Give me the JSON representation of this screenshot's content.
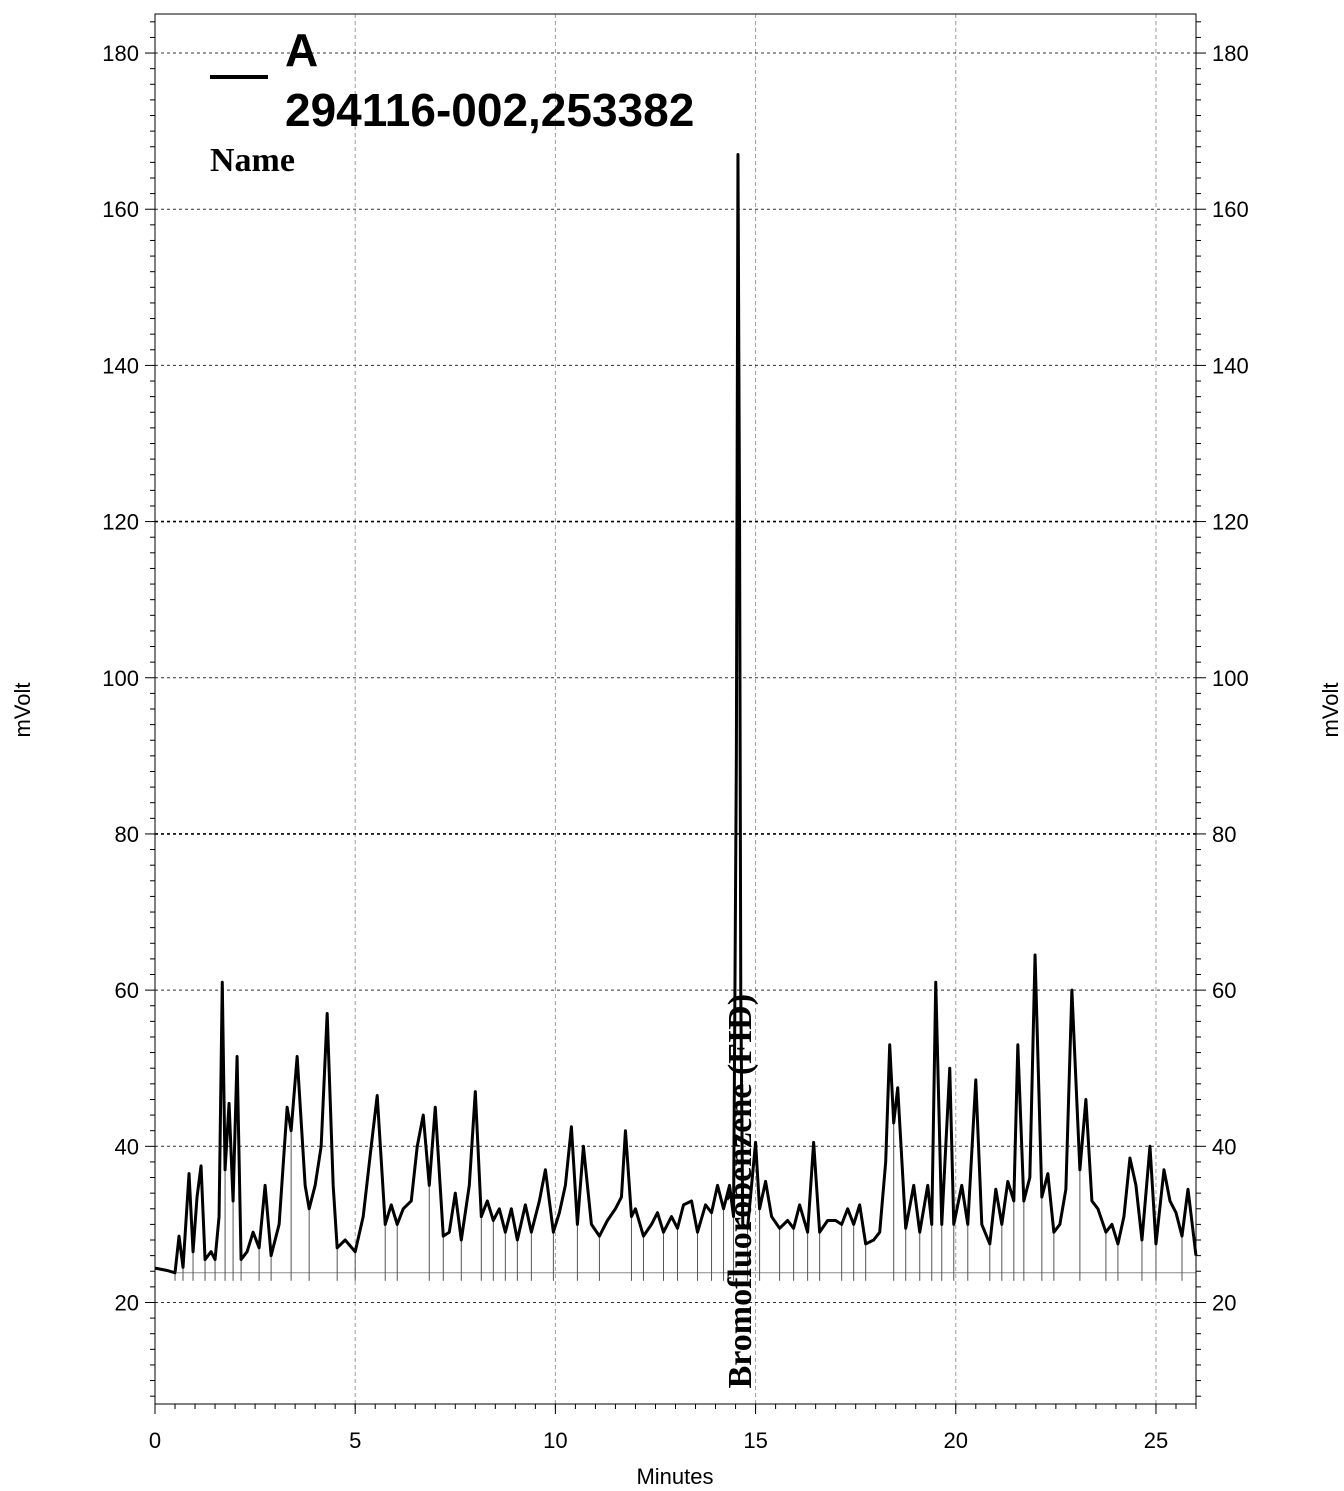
{
  "chart_data": {
    "type": "line",
    "xlabel": "Minutes",
    "ylabel_left": "mVolt",
    "ylabel_right": "mVolt",
    "xlim": [
      0,
      26
    ],
    "ylim": [
      7,
      185
    ],
    "x_ticks": [
      0,
      5,
      10,
      15,
      20,
      25
    ],
    "x_tick_labels": [
      "0",
      "5",
      "10",
      "15",
      "20",
      "25"
    ],
    "y_ticks": [
      20,
      40,
      60,
      80,
      100,
      120,
      140,
      160,
      180
    ],
    "y_tick_labels": [
      "20",
      "40",
      "60",
      "80",
      "100",
      "120",
      "140",
      "160",
      "180"
    ],
    "grid": true,
    "legend": {
      "placement": "top-left",
      "series_label": "A",
      "sample_id": "294116-002,253382",
      "name_heading": "Name"
    },
    "baseline_mv": 23.8,
    "series": [
      {
        "name": "A",
        "color": "#000000",
        "points": [
          [
            0.0,
            24.4
          ],
          [
            0.3,
            24.1
          ],
          [
            0.5,
            23.8
          ],
          [
            0.6,
            28.5
          ],
          [
            0.7,
            24.5
          ],
          [
            0.85,
            36.5
          ],
          [
            0.95,
            26.5
          ],
          [
            1.05,
            33.5
          ],
          [
            1.15,
            37.5
          ],
          [
            1.25,
            25.5
          ],
          [
            1.4,
            26.5
          ],
          [
            1.5,
            25.5
          ],
          [
            1.6,
            31.0
          ],
          [
            1.68,
            61.0
          ],
          [
            1.75,
            37.0
          ],
          [
            1.85,
            45.5
          ],
          [
            1.95,
            33.0
          ],
          [
            2.05,
            51.5
          ],
          [
            2.15,
            25.5
          ],
          [
            2.3,
            26.5
          ],
          [
            2.45,
            29.0
          ],
          [
            2.6,
            27.0
          ],
          [
            2.75,
            35.0
          ],
          [
            2.9,
            26.0
          ],
          [
            3.1,
            30.0
          ],
          [
            3.3,
            45.0
          ],
          [
            3.4,
            42.0
          ],
          [
            3.55,
            51.5
          ],
          [
            3.75,
            35.0
          ],
          [
            3.85,
            32.0
          ],
          [
            4.0,
            35.0
          ],
          [
            4.15,
            40.0
          ],
          [
            4.3,
            57.0
          ],
          [
            4.45,
            35.0
          ],
          [
            4.55,
            27.0
          ],
          [
            4.75,
            28.0
          ],
          [
            5.0,
            26.5
          ],
          [
            5.2,
            31.0
          ],
          [
            5.4,
            40.0
          ],
          [
            5.55,
            46.5
          ],
          [
            5.75,
            30.0
          ],
          [
            5.9,
            32.5
          ],
          [
            6.05,
            30.0
          ],
          [
            6.2,
            32.0
          ],
          [
            6.4,
            33.0
          ],
          [
            6.55,
            40.0
          ],
          [
            6.7,
            44.0
          ],
          [
            6.85,
            35.0
          ],
          [
            7.0,
            45.0
          ],
          [
            7.2,
            28.5
          ],
          [
            7.35,
            29.0
          ],
          [
            7.5,
            34.0
          ],
          [
            7.65,
            28.0
          ],
          [
            7.85,
            35.0
          ],
          [
            8.0,
            47.0
          ],
          [
            8.15,
            31.0
          ],
          [
            8.3,
            33.0
          ],
          [
            8.45,
            30.5
          ],
          [
            8.6,
            32.0
          ],
          [
            8.75,
            29.0
          ],
          [
            8.9,
            32.0
          ],
          [
            9.05,
            28.0
          ],
          [
            9.25,
            32.5
          ],
          [
            9.4,
            29.0
          ],
          [
            9.6,
            33.0
          ],
          [
            9.75,
            37.0
          ],
          [
            9.95,
            29.0
          ],
          [
            10.1,
            31.5
          ],
          [
            10.25,
            35.0
          ],
          [
            10.4,
            42.5
          ],
          [
            10.55,
            30.0
          ],
          [
            10.7,
            40.0
          ],
          [
            10.9,
            30.0
          ],
          [
            11.1,
            28.5
          ],
          [
            11.3,
            30.5
          ],
          [
            11.5,
            32.0
          ],
          [
            11.65,
            33.5
          ],
          [
            11.75,
            42.0
          ],
          [
            11.9,
            31.0
          ],
          [
            12.0,
            32.0
          ],
          [
            12.2,
            28.5
          ],
          [
            12.4,
            30.0
          ],
          [
            12.55,
            31.5
          ],
          [
            12.7,
            29.0
          ],
          [
            12.9,
            31.0
          ],
          [
            13.05,
            29.5
          ],
          [
            13.2,
            32.5
          ],
          [
            13.4,
            33.0
          ],
          [
            13.55,
            29.0
          ],
          [
            13.75,
            32.5
          ],
          [
            13.9,
            31.5
          ],
          [
            14.05,
            35.0
          ],
          [
            14.2,
            32.0
          ],
          [
            14.35,
            35.0
          ],
          [
            14.45,
            31.0
          ],
          [
            14.52,
            90.0
          ],
          [
            14.56,
            167.0
          ],
          [
            14.6,
            120.0
          ],
          [
            14.63,
            60.0
          ],
          [
            14.68,
            30.0
          ],
          [
            14.8,
            29.5
          ],
          [
            15.0,
            40.5
          ],
          [
            15.1,
            32.0
          ],
          [
            15.25,
            35.5
          ],
          [
            15.4,
            31.0
          ],
          [
            15.6,
            29.5
          ],
          [
            15.8,
            30.5
          ],
          [
            15.95,
            29.5
          ],
          [
            16.1,
            32.5
          ],
          [
            16.3,
            29.0
          ],
          [
            16.45,
            40.5
          ],
          [
            16.6,
            29.0
          ],
          [
            16.8,
            30.5
          ],
          [
            17.0,
            30.5
          ],
          [
            17.15,
            30.0
          ],
          [
            17.3,
            32.0
          ],
          [
            17.45,
            30.0
          ],
          [
            17.6,
            32.5
          ],
          [
            17.75,
            27.5
          ],
          [
            17.95,
            28.0
          ],
          [
            18.1,
            29.0
          ],
          [
            18.25,
            38.0
          ],
          [
            18.35,
            53.0
          ],
          [
            18.45,
            43.0
          ],
          [
            18.55,
            47.5
          ],
          [
            18.75,
            29.5
          ],
          [
            18.95,
            35.0
          ],
          [
            19.1,
            29.0
          ],
          [
            19.3,
            35.0
          ],
          [
            19.4,
            30.0
          ],
          [
            19.5,
            61.0
          ],
          [
            19.65,
            30.0
          ],
          [
            19.85,
            50.0
          ],
          [
            19.95,
            30.0
          ],
          [
            20.15,
            35.0
          ],
          [
            20.3,
            30.0
          ],
          [
            20.5,
            48.5
          ],
          [
            20.65,
            30.0
          ],
          [
            20.85,
            27.5
          ],
          [
            21.0,
            34.5
          ],
          [
            21.15,
            30.0
          ],
          [
            21.3,
            35.5
          ],
          [
            21.45,
            33.0
          ],
          [
            21.55,
            53.0
          ],
          [
            21.7,
            33.0
          ],
          [
            21.85,
            36.0
          ],
          [
            21.98,
            64.5
          ],
          [
            22.15,
            33.5
          ],
          [
            22.3,
            36.5
          ],
          [
            22.45,
            29.0
          ],
          [
            22.6,
            30.0
          ],
          [
            22.75,
            34.5
          ],
          [
            22.9,
            60.0
          ],
          [
            23.1,
            37.0
          ],
          [
            23.25,
            46.0
          ],
          [
            23.4,
            33.0
          ],
          [
            23.55,
            32.0
          ],
          [
            23.75,
            29.0
          ],
          [
            23.9,
            30.0
          ],
          [
            24.05,
            27.5
          ],
          [
            24.2,
            31.0
          ],
          [
            24.35,
            38.5
          ],
          [
            24.5,
            35.0
          ],
          [
            24.65,
            28.0
          ],
          [
            24.85,
            40.0
          ],
          [
            25.0,
            27.5
          ],
          [
            25.2,
            37.0
          ],
          [
            25.35,
            33.0
          ],
          [
            25.5,
            31.5
          ],
          [
            25.65,
            28.5
          ],
          [
            25.8,
            34.5
          ],
          [
            26.0,
            26.0
          ]
        ]
      }
    ],
    "annotations": [
      {
        "text": "Bromofluorobenzene (FID)",
        "x": 14.58,
        "orientation": "vertical"
      }
    ]
  }
}
